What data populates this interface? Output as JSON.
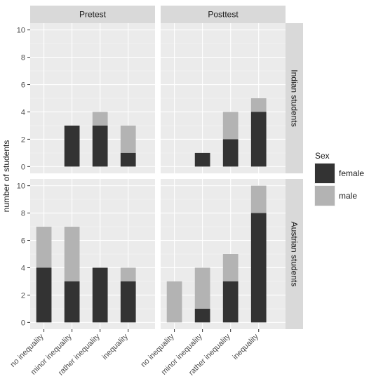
{
  "chart_data": {
    "type": "bar",
    "stacked": true,
    "ylabel": "number of students",
    "categories": [
      "no inequality",
      "minor inequality",
      "rather inequality",
      "inequality"
    ],
    "columns": [
      "Pretest",
      "Posttest"
    ],
    "rows": [
      "Indian students",
      "Austrian students"
    ],
    "yticks": [
      0,
      2,
      4,
      6,
      8,
      10
    ],
    "row_ylim": [
      [
        0,
        10
      ],
      [
        0,
        10
      ]
    ],
    "legend": {
      "title": "Sex",
      "placement": "right",
      "entries": [
        {
          "name": "female",
          "color": "#333333"
        },
        {
          "name": "male",
          "color": "#b3b3b3"
        }
      ]
    },
    "panels": [
      {
        "row": "Indian students",
        "column": "Pretest",
        "female": [
          0,
          3,
          3,
          1
        ],
        "male": [
          0,
          0,
          1,
          2
        ]
      },
      {
        "row": "Indian students",
        "column": "Posttest",
        "female": [
          0,
          1,
          2,
          4
        ],
        "male": [
          0,
          0,
          2,
          1
        ]
      },
      {
        "row": "Austrian students",
        "column": "Pretest",
        "female": [
          4,
          3,
          4,
          3
        ],
        "male": [
          3,
          4,
          0,
          1
        ]
      },
      {
        "row": "Austrian students",
        "column": "Posttest",
        "female": [
          0,
          1,
          3,
          8
        ],
        "male": [
          3,
          3,
          2,
          2
        ]
      }
    ]
  }
}
